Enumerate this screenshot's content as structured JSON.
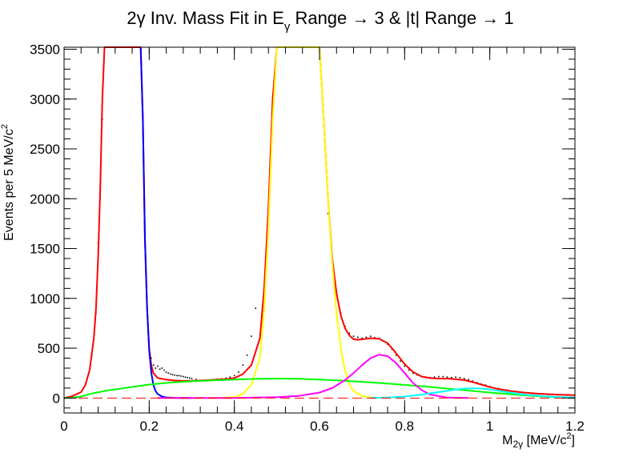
{
  "chart_data": {
    "type": "line",
    "title": "2γ Inv. Mass Fit in E",
    "title_sub": "γ",
    "title_rest": " Range → 3 & |t| Range → 1",
    "xlabel_main": "M",
    "xlabel_sub": "2γ",
    "xlabel_rest": " [MeV/c",
    "xlabel_sup": "2",
    "xlabel_end": "]",
    "ylabel": "Events per 5 MeV/c",
    "ylabel_sup": "2",
    "xlim": [
      0,
      1.2
    ],
    "ylim": [
      -150,
      3520
    ],
    "grid": false,
    "x_ticks": [
      0,
      0.2,
      0.4,
      0.6,
      0.8,
      1,
      1.2
    ],
    "x_tick_labels": [
      "0",
      "0.2",
      "0.4",
      "0.6",
      "0.8",
      "1",
      "1.2"
    ],
    "y_ticks": [
      0,
      500,
      1000,
      1500,
      2000,
      2500,
      3000,
      3500
    ],
    "y_tick_labels": [
      "0",
      "500",
      "1000",
      "1500",
      "2000",
      "2500",
      "3000",
      "3500"
    ],
    "zero_line": 0,
    "series": [
      {
        "color": "#ff0000",
        "x": [
          0.0,
          0.02,
          0.04,
          0.05,
          0.06,
          0.07,
          0.075,
          0.08,
          0.085,
          0.09,
          0.095,
          0.1,
          0.18,
          0.185,
          0.19,
          0.195,
          0.2,
          0.205,
          0.21,
          0.22,
          0.24,
          0.26,
          0.28,
          0.3,
          0.32,
          0.34,
          0.36,
          0.38,
          0.4,
          0.42,
          0.44,
          0.46,
          0.47,
          0.48,
          0.49,
          0.5,
          0.6,
          0.61,
          0.62,
          0.63,
          0.64,
          0.65,
          0.66,
          0.67,
          0.68,
          0.69,
          0.7,
          0.72,
          0.74,
          0.76,
          0.78,
          0.8,
          0.82,
          0.84,
          0.86,
          0.88,
          0.9,
          0.92,
          0.94,
          0.96,
          0.98,
          1.0,
          1.02,
          1.05,
          1.08,
          1.11,
          1.14,
          1.17,
          1.2
        ],
        "y": [
          0,
          20,
          60,
          130,
          280,
          600,
          900,
          1400,
          2100,
          3000,
          3520,
          3520,
          3520,
          2800,
          1600,
          900,
          500,
          330,
          250,
          200,
          185,
          175,
          172,
          172,
          175,
          180,
          185,
          190,
          200,
          240,
          330,
          600,
          1100,
          1900,
          3000,
          3520,
          3520,
          2800,
          2000,
          1400,
          1050,
          830,
          700,
          630,
          590,
          585,
          590,
          600,
          595,
          550,
          450,
          340,
          260,
          215,
          200,
          195,
          195,
          190,
          180,
          160,
          135,
          110,
          90,
          70,
          55,
          45,
          38,
          32,
          28
        ]
      },
      {
        "color": "#0000ff",
        "x": [
          0.18,
          0.185,
          0.19,
          0.195,
          0.2,
          0.205,
          0.21,
          0.215,
          0.22,
          0.23,
          0.24,
          0.26,
          0.28,
          0.3
        ],
        "y": [
          3520,
          2800,
          1600,
          900,
          480,
          250,
          130,
          70,
          40,
          15,
          6,
          2,
          1,
          0
        ]
      },
      {
        "color": "#ffff00",
        "x": [
          0.3,
          0.36,
          0.4,
          0.42,
          0.44,
          0.46,
          0.47,
          0.48,
          0.49,
          0.5,
          0.6,
          0.61,
          0.62,
          0.63,
          0.64,
          0.65,
          0.66,
          0.67,
          0.68,
          0.7,
          0.72,
          0.74
        ],
        "y": [
          0,
          1,
          10,
          40,
          130,
          400,
          900,
          1700,
          2800,
          3520,
          3520,
          2800,
          2000,
          1350,
          850,
          500,
          270,
          140,
          70,
          20,
          5,
          0
        ]
      },
      {
        "color": "#00ff00",
        "x": [
          0.0,
          0.02,
          0.04,
          0.06,
          0.1,
          0.15,
          0.2,
          0.25,
          0.3,
          0.35,
          0.4,
          0.45,
          0.5,
          0.55,
          0.6,
          0.65,
          0.7,
          0.75,
          0.8,
          0.85,
          0.9,
          0.95,
          1.0,
          1.05,
          1.1,
          1.15,
          1.2
        ],
        "y": [
          0,
          3,
          15,
          40,
          75,
          105,
          135,
          155,
          168,
          178,
          186,
          192,
          195,
          193,
          186,
          175,
          162,
          148,
          132,
          115,
          95,
          75,
          55,
          38,
          22,
          10,
          5
        ]
      },
      {
        "color": "#ff00ff",
        "x": [
          0.22,
          0.3,
          0.4,
          0.5,
          0.55,
          0.6,
          0.63,
          0.66,
          0.68,
          0.7,
          0.72,
          0.74,
          0.76,
          0.78,
          0.8,
          0.82,
          0.84,
          0.86,
          0.9,
          0.95
        ],
        "y": [
          0,
          0,
          1,
          8,
          20,
          55,
          100,
          180,
          250,
          330,
          400,
          435,
          420,
          350,
          250,
          150,
          80,
          35,
          5,
          0
        ]
      },
      {
        "color": "#00ffff",
        "x": [
          0.72,
          0.76,
          0.8,
          0.84,
          0.88,
          0.92,
          0.94,
          0.96,
          0.98,
          1.0,
          1.04,
          1.08,
          1.12,
          1.16,
          1.2
        ],
        "y": [
          0,
          5,
          15,
          35,
          60,
          85,
          95,
          98,
          95,
          85,
          60,
          35,
          20,
          10,
          5
        ]
      }
    ],
    "data_points": {
      "color": "#000000",
      "x": [
        0.065,
        0.075,
        0.08,
        0.085,
        0.09,
        0.195,
        0.205,
        0.21,
        0.215,
        0.22,
        0.225,
        0.23,
        0.235,
        0.24,
        0.245,
        0.25,
        0.255,
        0.26,
        0.265,
        0.27,
        0.275,
        0.28,
        0.285,
        0.29,
        0.295,
        0.3,
        0.31,
        0.32,
        0.33,
        0.34,
        0.35,
        0.36,
        0.37,
        0.38,
        0.39,
        0.4,
        0.41,
        0.42,
        0.43,
        0.44,
        0.45,
        0.62,
        0.63,
        0.64,
        0.65,
        0.66,
        0.67,
        0.68,
        0.69,
        0.7,
        0.71,
        0.72,
        0.73,
        0.74,
        0.75,
        0.76,
        0.77,
        0.78,
        0.79,
        0.8,
        0.81,
        0.82,
        0.83,
        0.84,
        0.85,
        0.86,
        0.87,
        0.88,
        0.89,
        0.9,
        0.91,
        0.92,
        0.93,
        0.94,
        0.95,
        0.96,
        0.97,
        0.98,
        0.99,
        1.0,
        1.02,
        1.04,
        1.06,
        1.08,
        1.1,
        1.12,
        1.14,
        1.16,
        1.18
      ],
      "y": [
        420,
        850,
        1550,
        2050,
        2800,
        1000,
        400,
        330,
        300,
        320,
        290,
        300,
        280,
        260,
        250,
        240,
        235,
        230,
        225,
        225,
        220,
        215,
        210,
        205,
        200,
        195,
        185,
        178,
        175,
        178,
        182,
        188,
        192,
        200,
        210,
        225,
        260,
        330,
        430,
        620,
        900,
        1850,
        1400,
        1050,
        850,
        720,
        650,
        620,
        610,
        600,
        610,
        620,
        605,
        600,
        570,
        540,
        490,
        430,
        370,
        320,
        280,
        250,
        230,
        215,
        208,
        205,
        210,
        215,
        215,
        210,
        205,
        210,
        205,
        195,
        185,
        170,
        155,
        140,
        130,
        115,
        95,
        80,
        65,
        55,
        45,
        40,
        35,
        30,
        28
      ]
    }
  }
}
